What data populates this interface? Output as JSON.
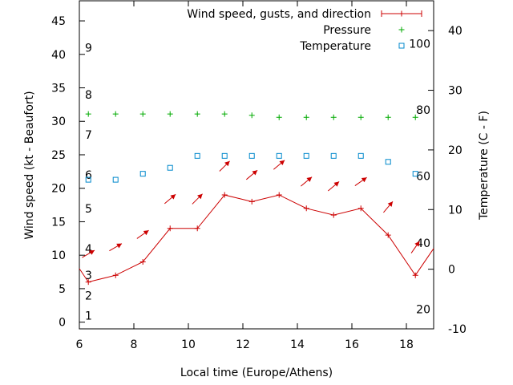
{
  "chart_data": {
    "type": "line",
    "title": "",
    "xlabel": "Local time (Europe/Athens)",
    "ylabel": "Wind speed (kt - Beaufort)",
    "y2label": "Temperature (C - F)",
    "xlim": [
      6,
      19
    ],
    "ylim": [
      -1,
      48
    ],
    "y2lim": [
      -10,
      45
    ],
    "x_ticks": [
      6,
      8,
      10,
      12,
      14,
      16,
      18
    ],
    "y_ticks": [
      0,
      5,
      10,
      15,
      20,
      25,
      30,
      35,
      40,
      45
    ],
    "y2_ticks": [
      -10,
      0,
      10,
      20,
      30,
      40
    ],
    "beaufort_scale": [
      {
        "label": "1",
        "kt": 1
      },
      {
        "label": "2",
        "kt": 4
      },
      {
        "label": "3",
        "kt": 7
      },
      {
        "label": "4",
        "kt": 11
      },
      {
        "label": "5",
        "kt": 17
      },
      {
        "label": "6",
        "kt": 22
      },
      {
        "label": "7",
        "kt": 28
      },
      {
        "label": "8",
        "kt": 34
      },
      {
        "label": "9",
        "kt": 41
      }
    ],
    "fahrenheit_labels": [
      {
        "label": "20",
        "celsius": -6.7
      },
      {
        "label": "40",
        "celsius": 4.4
      },
      {
        "label": "60",
        "celsius": 15.6
      },
      {
        "label": "80",
        "celsius": 26.7
      },
      {
        "label": "100",
        "celsius": 37.8
      }
    ],
    "series": [
      {
        "name": "Wind speed, gusts, and direction",
        "color": "#cc0000",
        "x": [
          6,
          6.33,
          7.33,
          8.33,
          9.33,
          10.33,
          11.33,
          12.33,
          13.33,
          14.33,
          15.33,
          16.33,
          17.33,
          18.33,
          19
        ],
        "values": [
          8,
          6,
          7,
          9,
          14,
          14,
          19,
          18,
          19,
          17,
          16,
          17,
          13,
          7,
          11
        ]
      },
      {
        "name": "Pressure",
        "color": "#00aa00",
        "x": [
          6.33,
          7.33,
          8.33,
          9.33,
          10.33,
          11.33,
          12.33,
          13.33,
          14.33,
          15.33,
          16.33,
          17.33,
          18.33
        ],
        "values": [
          31.1,
          31.1,
          31.1,
          31.1,
          31.1,
          31.1,
          30.9,
          30.6,
          30.6,
          30.6,
          30.6,
          30.6,
          30.6
        ]
      },
      {
        "name": "Temperature",
        "color": "#0088cc",
        "x": [
          6.33,
          7.33,
          8.33,
          9.33,
          10.33,
          11.33,
          12.33,
          13.33,
          14.33,
          15.33,
          16.33,
          17.33,
          18.33
        ],
        "values": [
          15,
          15,
          16,
          17,
          19,
          19,
          19,
          19,
          19,
          19,
          19,
          18,
          16
        ]
      }
    ],
    "wind_direction_arrows": {
      "color": "#cc0000",
      "x": [
        6.33,
        7.33,
        8.33,
        9.33,
        10.33,
        11.33,
        12.33,
        13.33,
        14.33,
        15.33,
        16.33,
        17.33,
        18.33
      ],
      "y_kt": [
        10.2,
        11.2,
        13.1,
        18.4,
        18.4,
        23.3,
        22.0,
        23.5,
        21.0,
        20.3,
        21.0,
        17.2,
        11.2
      ],
      "angle_deg": [
        30,
        30,
        35,
        40,
        45,
        45,
        40,
        40,
        40,
        40,
        35,
        50,
        55
      ]
    },
    "legend": "top-right"
  }
}
